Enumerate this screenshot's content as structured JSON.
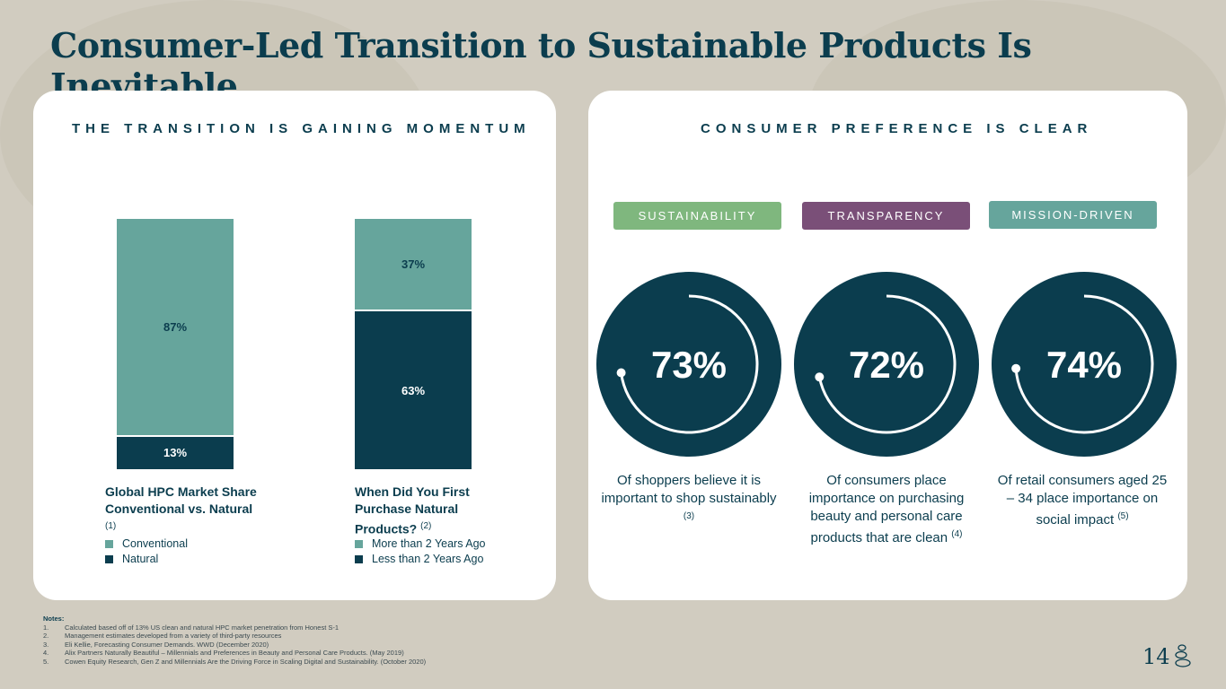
{
  "title": "Consumer-Led Transition to Sustainable Products Is Inevitable",
  "left": {
    "heading": "THE TRANSITION IS GAINING MOMENTUM",
    "charts": [
      {
        "caption": "Global HPC Market Share Conventional vs. Natural",
        "note": "(1)",
        "light_value": 87,
        "dark_value": 13,
        "light_label": "87%",
        "dark_label": "13%",
        "legend": [
          "Conventional",
          "Natural"
        ]
      },
      {
        "caption": "When Did You First Purchase Natural Products?",
        "note": "(2)",
        "light_value": 37,
        "dark_value": 63,
        "light_label": "37%",
        "dark_label": "63%",
        "legend": [
          "More than 2 Years Ago",
          "Less than 2 Years Ago"
        ]
      }
    ],
    "colors": {
      "light": "#66a59c",
      "dark": "#0b3d4e"
    }
  },
  "right": {
    "heading": "CONSUMER PREFERENCE IS CLEAR",
    "stats": [
      {
        "tag": "SUSTAINABILITY",
        "color": "#7fb77e",
        "value": 73,
        "label": "73%",
        "desc": "Of shoppers believe it is important to shop sustainably",
        "note": "(3)"
      },
      {
        "tag": "TRANSPARENCY",
        "color": "#7a4f78",
        "value": 72,
        "label": "72%",
        "desc": "Of consumers place importance on purchasing beauty and personal care products that are clean",
        "note": "(4)"
      },
      {
        "tag": "MISSION-DRIVEN",
        "color": "#66a59c",
        "value": 74,
        "label": "74%",
        "desc": "Of retail consumers aged 25 – 34 place importance on social impact",
        "note": "(5)"
      }
    ]
  },
  "notes": {
    "heading": "Notes:",
    "items": [
      {
        "n": "1.",
        "text": "Calculated based off of 13% US clean and natural HPC market penetration from Honest S-1"
      },
      {
        "n": "2.",
        "text": "Management estimates developed from a variety of third-party resources"
      },
      {
        "n": "3.",
        "text": "Eli Kellie, Forecasting Consumer Demands. WWD (December 2020)"
      },
      {
        "n": "4.",
        "text": "Alix Partners Naturally Beautiful – Millennials and Preferences in Beauty and Personal Care Products. (May 2019)"
      },
      {
        "n": "5.",
        "text": "Cowen Equity Research, Gen Z and Millennials Are the Driving Force in Scaling Digital and Sustainability. (October 2020)"
      }
    ]
  },
  "page_number": "14"
}
